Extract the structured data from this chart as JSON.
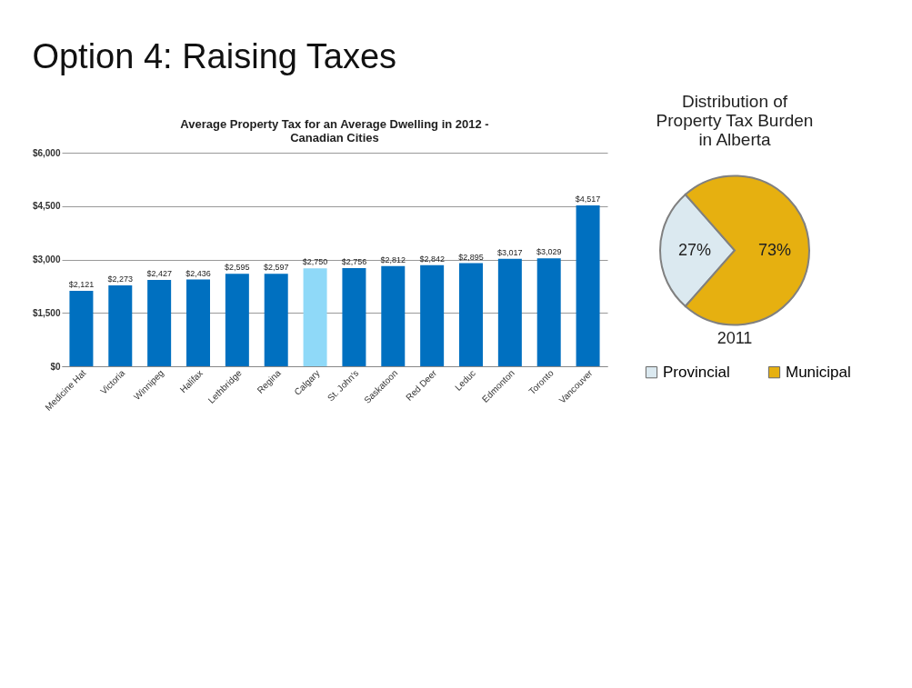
{
  "chart_data": [
    {
      "type": "bar",
      "title": [
        "Average Property Tax for an Average Dwelling in 2012 -",
        "Canadian Cities"
      ],
      "categories": [
        "Medicine Hat",
        "Victoria",
        "Winnipeg",
        "Halifax",
        "Lethbridge",
        "Regina",
        "Calgary",
        "St. John's",
        "Saskatoon",
        "Red Deer",
        "Leduc",
        "Edmonton",
        "Toronto",
        "Vancouver"
      ],
      "values": [
        2121,
        2273,
        2427,
        2436,
        2595,
        2597,
        2750,
        2756,
        2812,
        2842,
        2895,
        3017,
        3029,
        4517
      ],
      "colors": [
        "#0070c0",
        "#0070c0",
        "#0070c0",
        "#0070c0",
        "#0070c0",
        "#0070c0",
        "#8fd9f8",
        "#0070c0",
        "#0070c0",
        "#0070c0",
        "#0070c0",
        "#0070c0",
        "#0070c0",
        "#0070c0"
      ],
      "value_labels": [
        "$2,121",
        "$2,273",
        "$2,427",
        "$2,436",
        "$2,595",
        "$2,597",
        "$2,750",
        "$2,756",
        "$2,812",
        "$2,842",
        "$2,895",
        "$3,017",
        "$3,029",
        "$4,517"
      ],
      "ylim": [
        0,
        6000
      ],
      "yticks": [
        {
          "value": 0,
          "label": "$0"
        },
        {
          "value": 1500,
          "label": "$1,500"
        },
        {
          "value": 3000,
          "label": "$3,000"
        },
        {
          "value": 4500,
          "label": "$4,500"
        },
        {
          "value": 6000,
          "label": "$6,000"
        }
      ],
      "grid": "y",
      "legend": false,
      "annotations": [
        "Option 4: Raising Taxes"
      ]
    },
    {
      "type": "pie",
      "title": [
        "Distribution of",
        "Property Tax Burden",
        "in Alberta"
      ],
      "categories": [
        "Provincial",
        "Municipal"
      ],
      "values": [
        27,
        73
      ],
      "colors": [
        "#dbe9f0",
        "#e6b010"
      ],
      "value_labels": [
        "27%",
        "73%"
      ],
      "legend": "bottom",
      "annotations": [
        "2011"
      ]
    }
  ]
}
